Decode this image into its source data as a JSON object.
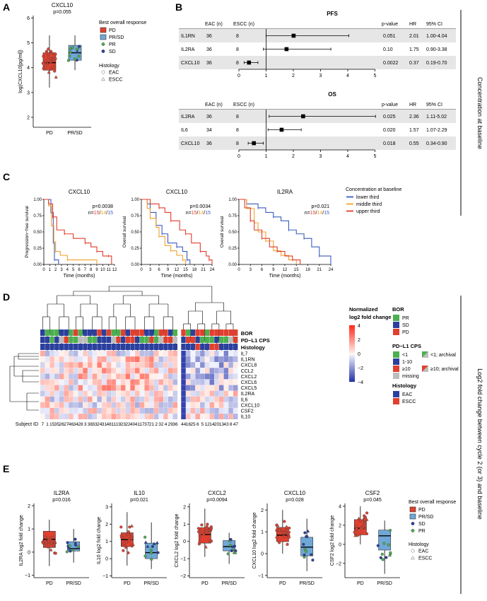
{
  "panel_letters": {
    "a": "A",
    "b": "B",
    "c": "C",
    "d": "D",
    "e": "E"
  },
  "side_labels": {
    "top": "Concentration at baseline",
    "bottom": "Log2 fold change between cycle 2 (or 3) and baseline"
  },
  "colors": {
    "pd": "#e0402f",
    "prsd": "#6fa8d6",
    "pr": "#4caf50",
    "sd": "#2b3f9e",
    "lower": "#3b5bbf",
    "middle": "#f2a12a",
    "upper": "#e23b2b",
    "grey": "#bdbdbd"
  },
  "panel_a": {
    "chart_data": {
      "type": "box",
      "title": "CXCL10",
      "subtitle": "p=0.055",
      "ylabel": "log(CXCL10[pg/ml])",
      "categories": [
        "PD",
        "PR/SD"
      ],
      "ylim": [
        1.6,
        6.1
      ],
      "yticks": [
        "2",
        "3",
        "4",
        "5",
        "6"
      ],
      "boxes": [
        {
          "name": "PD",
          "q1": 3.9,
          "median": 4.2,
          "q3": 4.6,
          "whisker_low": 3.2,
          "whisker_high": 5.3
        },
        {
          "name": "PR/SD",
          "q1": 4.3,
          "median": 4.6,
          "q3": 4.9,
          "whisker_low": 3.9,
          "whisker_high": 5.3
        }
      ]
    },
    "legend": {
      "title": "Best overall response",
      "items": [
        "PD",
        "PR/SD",
        "PR",
        "SD"
      ],
      "hist_title": "Histology",
      "hist_items": [
        "EAC",
        "ESCC"
      ]
    }
  },
  "panel_b": {
    "headers": {
      "eac": "EAC (n)",
      "escc": "ESCC (n)",
      "p": "p-value",
      "hr": "HR",
      "ci": "95% CI"
    },
    "pfs": {
      "title": "PFS",
      "axis_ticks": [
        "0",
        "1",
        "2",
        "3",
        "4",
        "5"
      ],
      "rows": [
        {
          "name": "IL1RN",
          "eac": "36",
          "escc": "8",
          "p": "0.051",
          "hr": "2.01",
          "ci": "1.00-4.04",
          "est": 2.01,
          "lo": 1.0,
          "hi": 4.04
        },
        {
          "name": "IL2RA",
          "eac": "36",
          "escc": "8",
          "p": "0.10",
          "hr": "1.75",
          "ci": "0.90-3.38",
          "est": 1.75,
          "lo": 0.9,
          "hi": 3.38
        },
        {
          "name": "CXCL10",
          "eac": "36",
          "escc": "8",
          "p": "0.0022",
          "hr": "0.37",
          "ci": "0.19-0.70",
          "est": 0.37,
          "lo": 0.19,
          "hi": 0.7
        }
      ]
    },
    "os": {
      "title": "OS",
      "axis_ticks": [
        "0",
        "1",
        "2",
        "3",
        "4",
        "5"
      ],
      "rows": [
        {
          "name": "IL2RA",
          "eac": "36",
          "escc": "8",
          "p": "0.025",
          "hr": "2.36",
          "ci": "1.11-5.02",
          "est": 2.36,
          "lo": 1.11,
          "hi": 5.02
        },
        {
          "name": "IL6",
          "eac": "34",
          "escc": "8",
          "p": "0.020",
          "hr": "1.57",
          "ci": "1.07-2.29",
          "est": 1.57,
          "lo": 1.07,
          "hi": 2.29
        },
        {
          "name": "CXCL10",
          "eac": "36",
          "escc": "8",
          "p": "0.018",
          "hr": "0.55",
          "ci": "0.34-0.90",
          "est": 0.55,
          "lo": 0.34,
          "hi": 0.9
        }
      ]
    }
  },
  "panel_c": {
    "legend": {
      "title": "Concentration at baseline",
      "items": [
        "lower third",
        "middle third",
        "upper third"
      ]
    },
    "plots": [
      {
        "title": "CXCL10",
        "ylabel": "Progression−free survival",
        "xlabel": "Time (months)",
        "p": "p=0.0038",
        "n_prefix": "n=",
        "n": [
          "15",
          "14",
          "15"
        ],
        "xticks": [
          "0",
          "1",
          "2",
          "3",
          "4",
          "5",
          "6",
          "7",
          "8",
          "9",
          "10",
          "11",
          "12"
        ],
        "xmax": 12,
        "curves": [
          [
            [
              0,
              1
            ],
            [
              0.5,
              1
            ],
            [
              1.2,
              0.8
            ],
            [
              1.6,
              0.33
            ],
            [
              1.8,
              0.07
            ],
            [
              2.3,
              0.07
            ],
            [
              2.5,
              0
            ]
          ],
          [
            [
              0,
              1
            ],
            [
              0.8,
              0.9
            ],
            [
              1.3,
              0.6
            ],
            [
              1.7,
              0.35
            ],
            [
              2,
              0.2
            ],
            [
              2.8,
              0.14
            ],
            [
              4,
              0.07
            ],
            [
              8,
              0.07
            ],
            [
              9,
              0
            ]
          ],
          [
            [
              0,
              1
            ],
            [
              0.8,
              0.93
            ],
            [
              1.5,
              0.73
            ],
            [
              2.2,
              0.53
            ],
            [
              3.5,
              0.47
            ],
            [
              5,
              0.4
            ],
            [
              7,
              0.33
            ],
            [
              8,
              0.27
            ],
            [
              9,
              0.2
            ],
            [
              10,
              0.13
            ],
            [
              11,
              0.13
            ],
            [
              11.5,
              0
            ]
          ]
        ]
      },
      {
        "title": "CXCL10",
        "ylabel": "Overall survival",
        "xlabel": "Time (months)",
        "p": "p=0.0034",
        "n_prefix": "n=",
        "n": [
          "15",
          "14",
          "15"
        ],
        "xticks": [
          "0",
          "3",
          "6",
          "9",
          "12",
          "15",
          "18",
          "21",
          "24"
        ],
        "xmax": 24,
        "curves": [
          [
            [
              0,
              1
            ],
            [
              2,
              0.93
            ],
            [
              3,
              0.8
            ],
            [
              5,
              0.6
            ],
            [
              7,
              0.47
            ],
            [
              9,
              0.33
            ],
            [
              12,
              0.27
            ],
            [
              14,
              0.2
            ],
            [
              15.5,
              0.07
            ],
            [
              16.5,
              0
            ]
          ],
          [
            [
              0,
              1
            ],
            [
              2,
              0.86
            ],
            [
              3,
              0.71
            ],
            [
              5,
              0.57
            ],
            [
              6,
              0.43
            ],
            [
              8,
              0.29
            ],
            [
              10,
              0.21
            ],
            [
              12,
              0.14
            ],
            [
              14,
              0.07
            ],
            [
              15,
              0
            ]
          ],
          [
            [
              0,
              1
            ],
            [
              3,
              0.93
            ],
            [
              6,
              0.87
            ],
            [
              8,
              0.8
            ],
            [
              10,
              0.67
            ],
            [
              13,
              0.53
            ],
            [
              15,
              0.47
            ],
            [
              17,
              0.33
            ],
            [
              20,
              0.2
            ],
            [
              22,
              0.13
            ],
            [
              23,
              0.07
            ],
            [
              24,
              0
            ]
          ]
        ]
      },
      {
        "title": "IL2RA",
        "ylabel": "Overall survival",
        "xlabel": "Time (months)",
        "p": "p=0.021",
        "n_prefix": "n=",
        "n": [
          "15",
          "14",
          "15"
        ],
        "xticks": [
          "0",
          "3",
          "6",
          "9",
          "12",
          "15",
          "18",
          "21",
          "24"
        ],
        "xmax": 24,
        "curves": [
          [
            [
              0,
              1
            ],
            [
              2,
              0.93
            ],
            [
              5,
              0.87
            ],
            [
              7,
              0.8
            ],
            [
              9,
              0.73
            ],
            [
              11,
              0.67
            ],
            [
              13,
              0.53
            ],
            [
              15,
              0.47
            ],
            [
              17,
              0.4
            ],
            [
              19,
              0.27
            ],
            [
              21,
              0.13
            ],
            [
              23,
              0.13
            ],
            [
              24,
              0
            ]
          ],
          [
            [
              0,
              1
            ],
            [
              2,
              0.86
            ],
            [
              4,
              0.64
            ],
            [
              5,
              0.5
            ],
            [
              7,
              0.36
            ],
            [
              9,
              0.21
            ],
            [
              11,
              0.14
            ],
            [
              13,
              0.07
            ],
            [
              15,
              0
            ]
          ],
          [
            [
              0,
              1
            ],
            [
              1.5,
              0.87
            ],
            [
              3,
              0.67
            ],
            [
              4,
              0.53
            ],
            [
              6,
              0.4
            ],
            [
              8,
              0.27
            ],
            [
              10,
              0.2
            ],
            [
              12,
              0.13
            ],
            [
              14,
              0.07
            ],
            [
              16,
              0
            ]
          ]
        ]
      }
    ]
  },
  "panel_d": {
    "row_labels": [
      "IL7",
      "IL1RN",
      "CXCL8",
      "CCL2",
      "CXCL2",
      "CXCL6",
      "CXCL5",
      "IL2RA",
      "IL6",
      "CXCL10",
      "CSF2",
      "IL10"
    ],
    "annotation_labels": [
      "BOR",
      "PD−L1 CPS",
      "Histology"
    ],
    "subject_id_label": "Subject ID",
    "subject_ids": [
      "7",
      "1",
      "15",
      "35",
      "26",
      "27",
      "46",
      "34",
      "28",
      "3",
      "38",
      "33",
      "24",
      "31",
      "48",
      "11",
      "19",
      "23",
      "22",
      "40",
      "41",
      "17",
      "37",
      "21",
      "2",
      "32",
      "4",
      "29",
      "36",
      "44",
      "16",
      "25",
      "6",
      "5",
      "12",
      "14",
      "20",
      "13",
      "43",
      "8",
      "47"
    ],
    "scale": {
      "title": "Normalized",
      "title2": "log2 fold change",
      "ticks": [
        "4",
        "2",
        "0",
        "−2",
        "−4"
      ]
    },
    "bor_legend": {
      "title": "BOR",
      "items": [
        "PR",
        "SD",
        "PD"
      ]
    },
    "cps_legend": {
      "title": "PD−L1 CPS",
      "items": [
        "<1",
        "1-10",
        "≥10",
        "missing"
      ],
      "archival": [
        "<1; archival",
        "≥10; archival"
      ]
    },
    "hist_legend": {
      "title": "Histology",
      "items": [
        "EAC",
        "ESCC"
      ]
    }
  },
  "panel_e": {
    "legend": {
      "title": "Best overall response",
      "items": [
        "PD",
        "PR/SD",
        "SD",
        "PR"
      ],
      "hist_title": "Histology",
      "hist_items": [
        "EAC",
        "ESCC"
      ]
    },
    "chart_data": [
      {
        "type": "box",
        "title": "IL2RA",
        "p": "p=0.016",
        "ylabel": "IL2RA log2 fold change",
        "categories": [
          "PD",
          "PR/SD"
        ],
        "ylim": [
          -1.1,
          2.1
        ],
        "yticks": [
          {
            "v": -1,
            "t": "−1"
          },
          {
            "v": 0,
            "t": "0"
          },
          {
            "v": 1,
            "t": "1"
          },
          {
            "v": 2,
            "t": "2"
          }
        ],
        "boxes": [
          {
            "q1": 0.2,
            "median": 0.55,
            "q3": 0.9,
            "lo": -0.6,
            "hi": 1.4
          },
          {
            "q1": 0.05,
            "median": 0.15,
            "q3": 0.45,
            "lo": -0.45,
            "hi": 1.0
          }
        ]
      },
      {
        "type": "box",
        "title": "IL10",
        "p": "p=0.021",
        "ylabel": "IL10 log2 fold change",
        "categories": [
          "PD",
          "PR/SD"
        ],
        "ylim": [
          -1.1,
          3.2
        ],
        "yticks": [
          {
            "v": -1,
            "t": "−1"
          },
          {
            "v": 0,
            "t": "0"
          },
          {
            "v": 1,
            "t": "1"
          },
          {
            "v": 2,
            "t": "2"
          },
          {
            "v": 3,
            "t": "3"
          }
        ],
        "boxes": [
          {
            "q1": 0.7,
            "median": 1.1,
            "q3": 1.5,
            "lo": -0.4,
            "hi": 2.7
          },
          {
            "q1": 0.0,
            "median": 0.35,
            "q3": 0.9,
            "lo": -0.6,
            "hi": 2.1
          }
        ]
      },
      {
        "type": "box",
        "title": "CXCL2",
        "p": "p=0.0094",
        "ylabel": "CXCL2 log2 fold change",
        "categories": [
          "PD",
          "PR/SD"
        ],
        "ylim": [
          -2.1,
          2.2
        ],
        "yticks": [
          {
            "v": -2,
            "t": "−2"
          },
          {
            "v": -1,
            "t": "−1"
          },
          {
            "v": 0,
            "t": "0"
          },
          {
            "v": 1,
            "t": "1"
          },
          {
            "v": 2,
            "t": "2"
          }
        ],
        "boxes": [
          {
            "q1": -0.1,
            "median": 0.4,
            "q3": 0.8,
            "lo": -0.9,
            "hi": 1.9
          },
          {
            "q1": -0.55,
            "median": -0.3,
            "q3": 0.05,
            "lo": -1.3,
            "hi": 0.5
          }
        ]
      },
      {
        "type": "box",
        "title": "CXCL10",
        "p": "p=0.028",
        "ylabel": "CXCL10 log2 fold change",
        "categories": [
          "PD",
          "PR/SD"
        ],
        "ylim": [
          -1.1,
          2.3
        ],
        "yticks": [
          {
            "v": -1,
            "t": "−1"
          },
          {
            "v": 0,
            "t": "0"
          },
          {
            "v": 1,
            "t": "1"
          },
          {
            "v": 2,
            "t": "2"
          }
        ],
        "boxes": [
          {
            "q1": 0.55,
            "median": 0.85,
            "q3": 1.2,
            "lo": 0.0,
            "hi": 2.0
          },
          {
            "q1": -0.1,
            "median": 0.3,
            "q3": 0.75,
            "lo": -0.8,
            "hi": 1.6
          }
        ]
      },
      {
        "type": "box",
        "title": "CSF2",
        "p": "p=0.045",
        "ylabel": "CSF2 log2 fold change",
        "categories": [
          "PD",
          "PR/SD"
        ],
        "ylim": [
          -3.5,
          4.3
        ],
        "yticks": [
          {
            "v": -2,
            "t": "−2"
          },
          {
            "v": 0,
            "t": "0"
          },
          {
            "v": 2,
            "t": "2"
          },
          {
            "v": 4,
            "t": "4"
          }
        ],
        "boxes": [
          {
            "q1": 1.0,
            "median": 1.7,
            "q3": 2.6,
            "lo": 0.0,
            "hi": 4.0
          },
          {
            "q1": -0.6,
            "median": 0.9,
            "q3": 1.5,
            "lo": -3.1,
            "hi": 2.5
          }
        ]
      }
    ]
  }
}
